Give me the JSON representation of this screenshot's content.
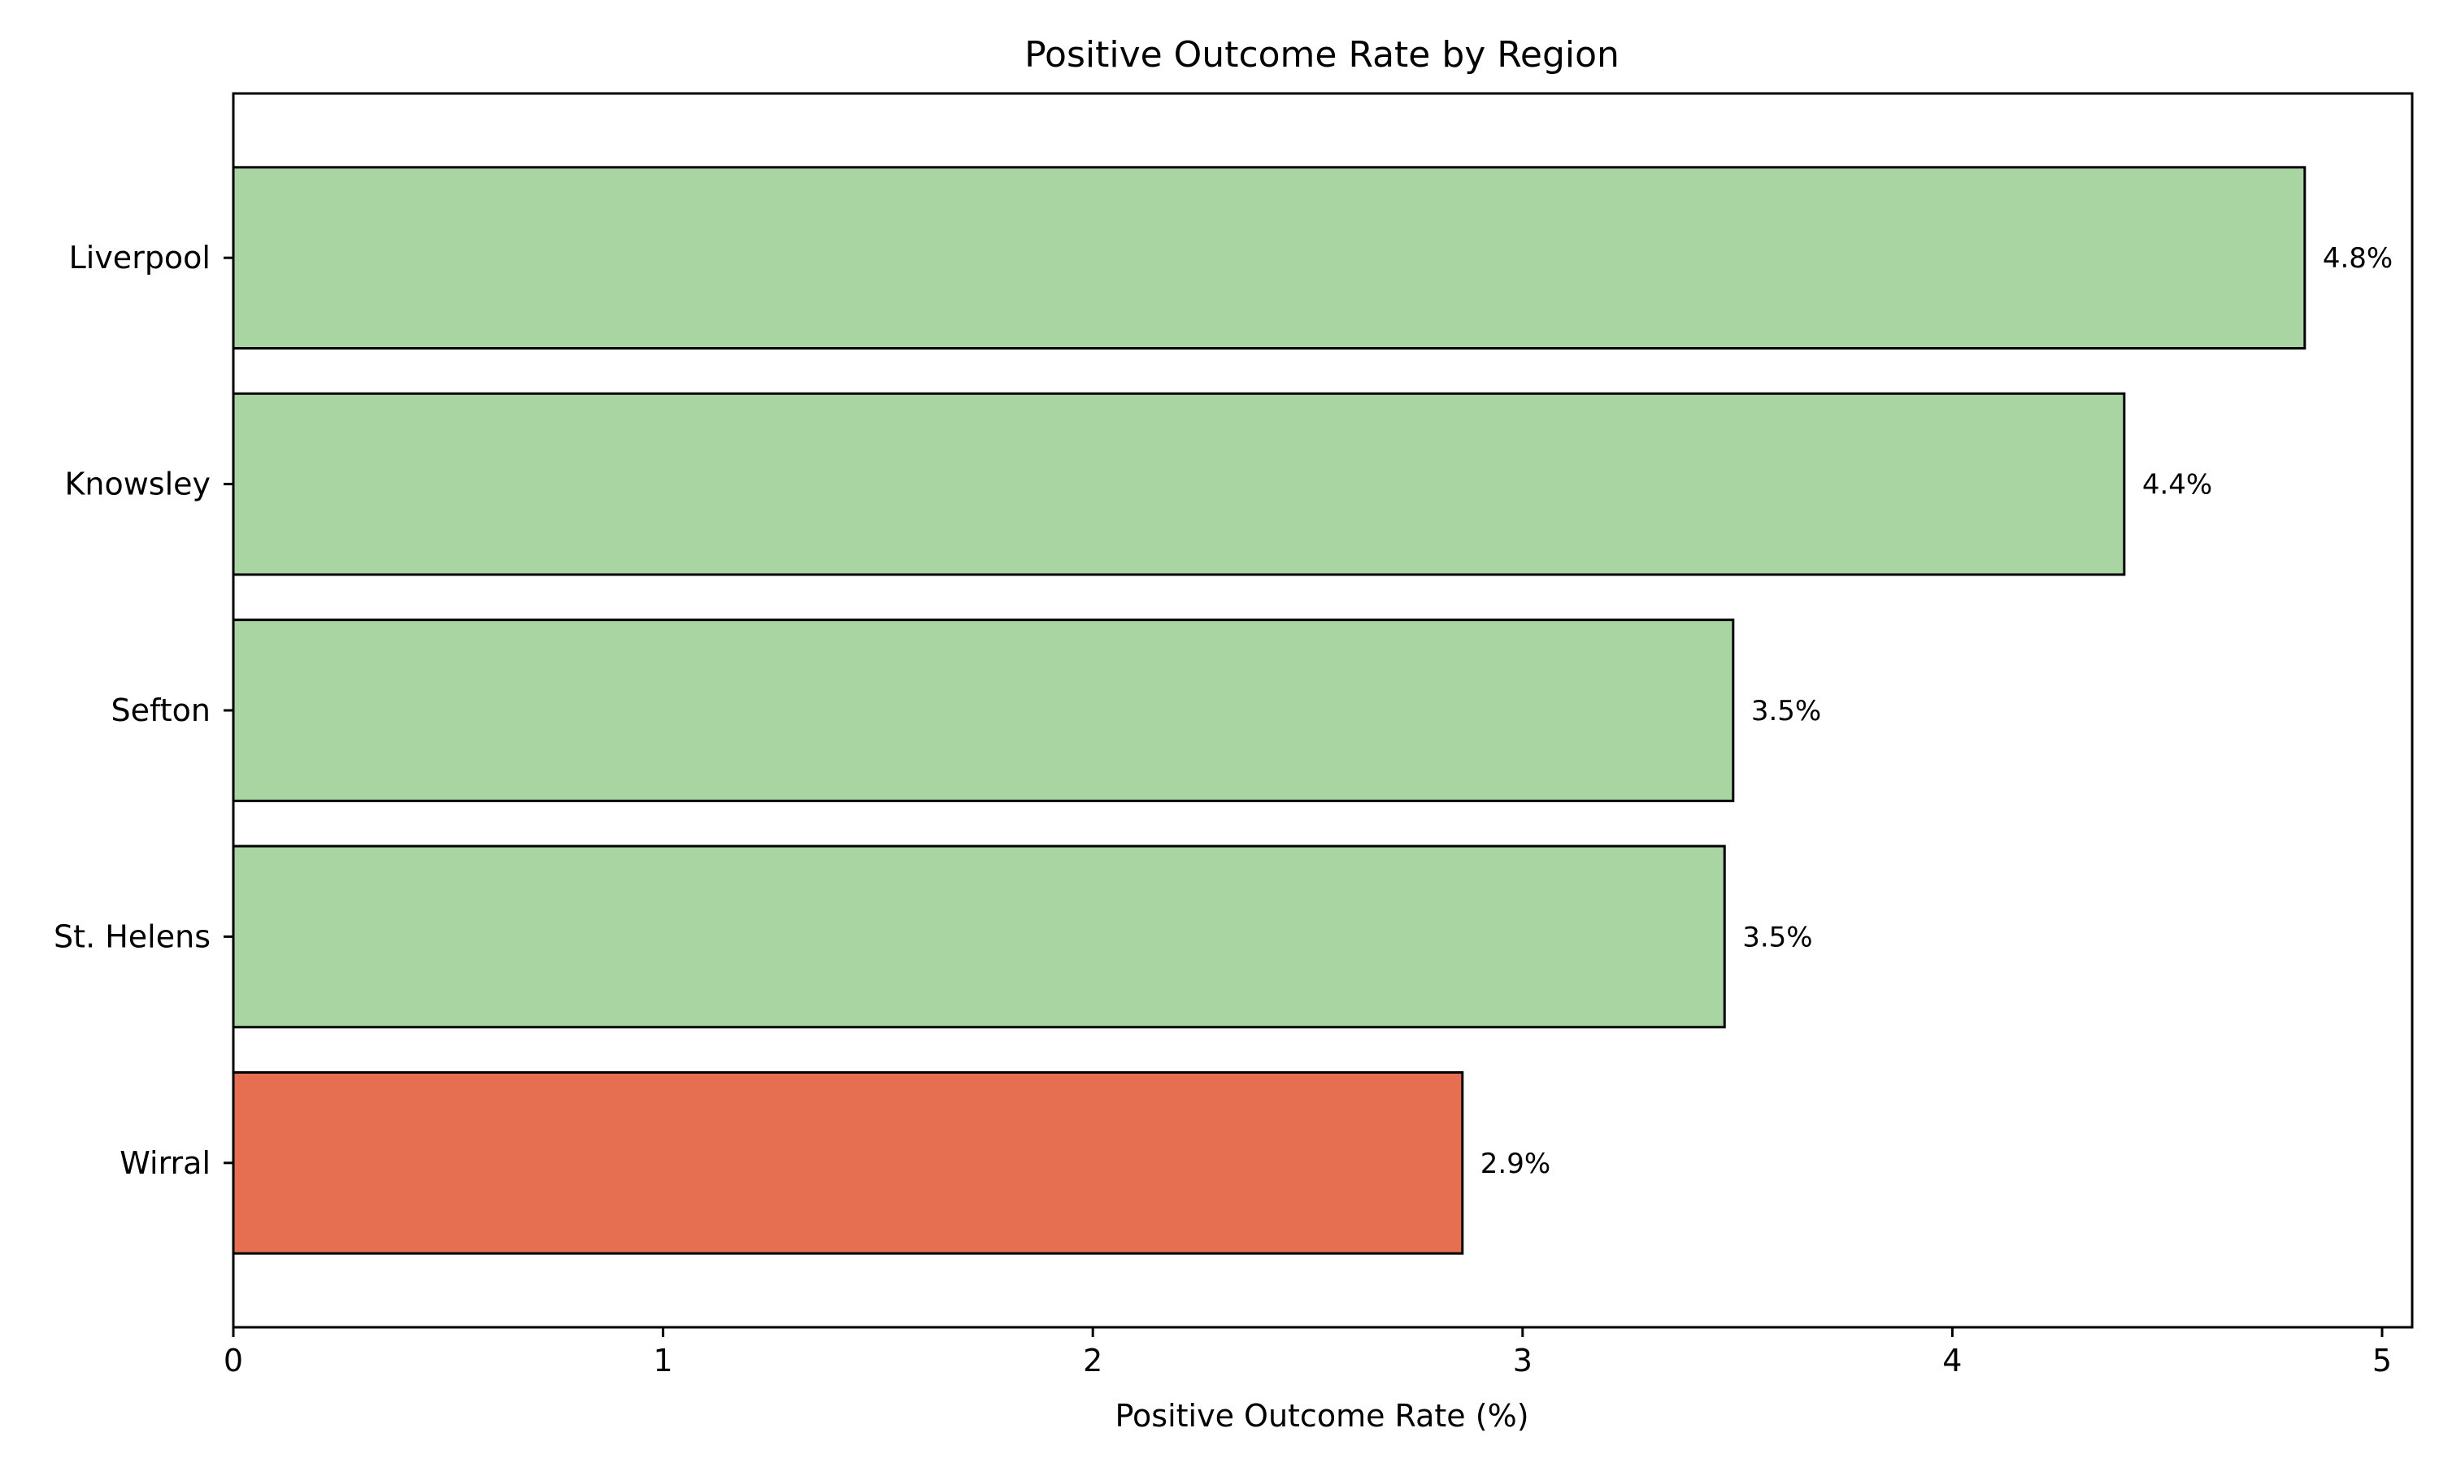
{
  "chart_data": {
    "type": "bar",
    "orientation": "horizontal",
    "title": "Positive Outcome Rate by Region",
    "xlabel": "Positive Outcome Rate (%)",
    "ylabel": "",
    "categories": [
      "Liverpool",
      "Knowsley",
      "Sefton",
      "St. Helens",
      "Wirral"
    ],
    "values": [
      4.82,
      4.4,
      3.49,
      3.47,
      2.86
    ],
    "value_labels": [
      "4.8%",
      "4.4%",
      "3.5%",
      "3.5%",
      "2.9%"
    ],
    "bar_colors": [
      "#a9d5a2",
      "#a9d5a2",
      "#a9d5a2",
      "#a9d5a2",
      "#e76f51"
    ],
    "xlim": [
      0,
      5.07
    ],
    "xticks": [
      0,
      1,
      2,
      3,
      4,
      5
    ],
    "grid": false,
    "legend": "none"
  }
}
